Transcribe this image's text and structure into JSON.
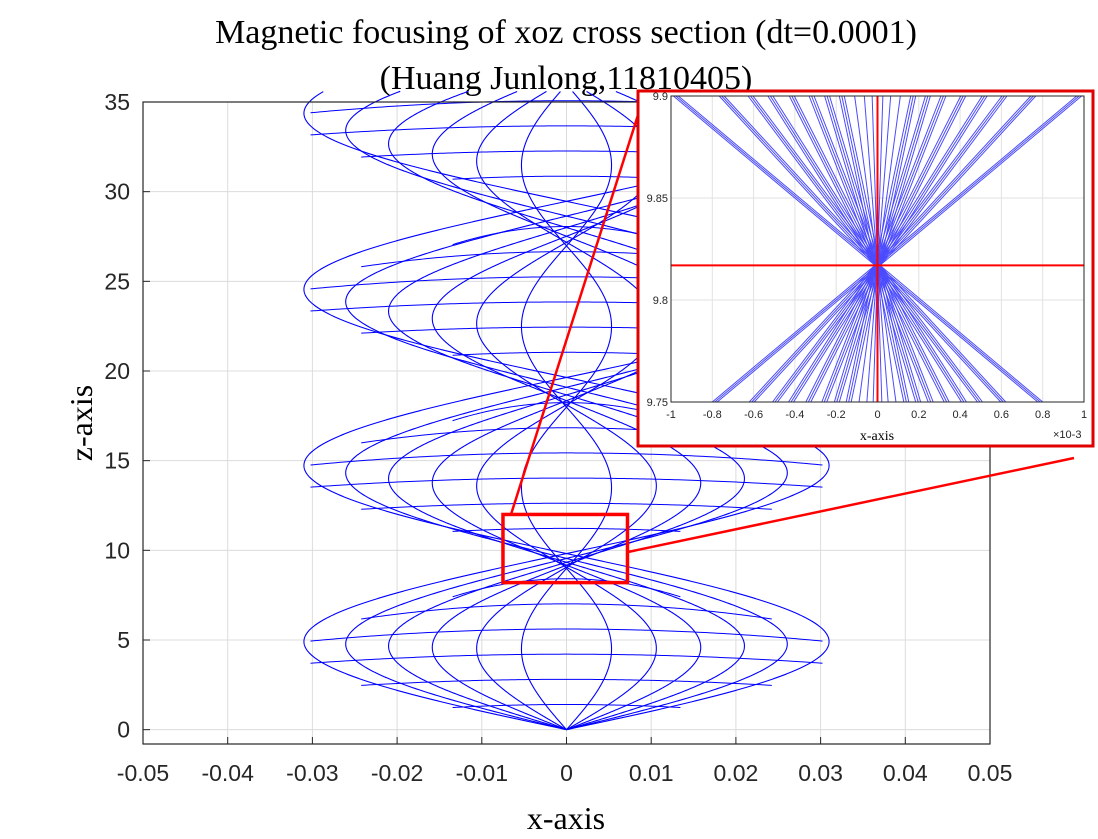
{
  "chart_data": [
    {
      "type": "line",
      "title": "Magnetic focusing of xoz cross section (dt=0.0001)",
      "subtitle": "(Huang Junlong,11810405)",
      "xlabel": "x-axis",
      "ylabel": "z-axis",
      "xlim": [
        -0.05,
        0.05
      ],
      "ylim": [
        -0.8,
        35
      ],
      "x_ticks": [
        -0.05,
        -0.04,
        -0.03,
        -0.02,
        -0.01,
        0,
        0.01,
        0.02,
        0.03,
        0.04,
        0.05
      ],
      "x_tick_labels": [
        "-0.05",
        "-0.04",
        "-0.03",
        "-0.02",
        "-0.01",
        "0",
        "0.01",
        "0.02",
        "0.03",
        "0.04",
        "0.05"
      ],
      "y_ticks": [
        0,
        5,
        10,
        15,
        20,
        25,
        30,
        35
      ],
      "y_tick_labels": [
        "0",
        "5",
        "10",
        "15",
        "20",
        "25",
        "30",
        "35"
      ],
      "grid": true,
      "focal_period_z": 9.82,
      "max_radius_x": 0.031,
      "trajectory_color": "#0000ff",
      "highlight_box": {
        "x": [
          -0.0075,
          0.0072
        ],
        "z": [
          8.2,
          12.0
        ],
        "color": "#ff0000"
      }
    },
    {
      "type": "line",
      "title": "",
      "xlabel": "x-axis",
      "x_multiplier": "×10-3",
      "xlim": [
        -1,
        1
      ],
      "ylim": [
        9.75,
        9.9
      ],
      "x_ticks": [
        -1,
        -0.8,
        -0.6,
        -0.4,
        -0.2,
        0,
        0.2,
        0.4,
        0.6,
        0.8,
        1
      ],
      "x_tick_labels": [
        "-1",
        "-0.8",
        "-0.6",
        "-0.4",
        "-0.2",
        "0",
        "0.2",
        "0.4",
        "0.6",
        "0.8",
        "1"
      ],
      "y_ticks": [
        9.75,
        9.8,
        9.85,
        9.9
      ],
      "y_tick_labels": [
        "9.75",
        "9.8",
        "9.85",
        "9.9"
      ],
      "grid": true,
      "focus_point": {
        "x": 0,
        "z": 9.817
      },
      "reference_lines": {
        "horizontal_z": 9.817,
        "vertical_x": 0,
        "color": "#ff0000"
      },
      "line_color": "#4b4bff"
    }
  ]
}
